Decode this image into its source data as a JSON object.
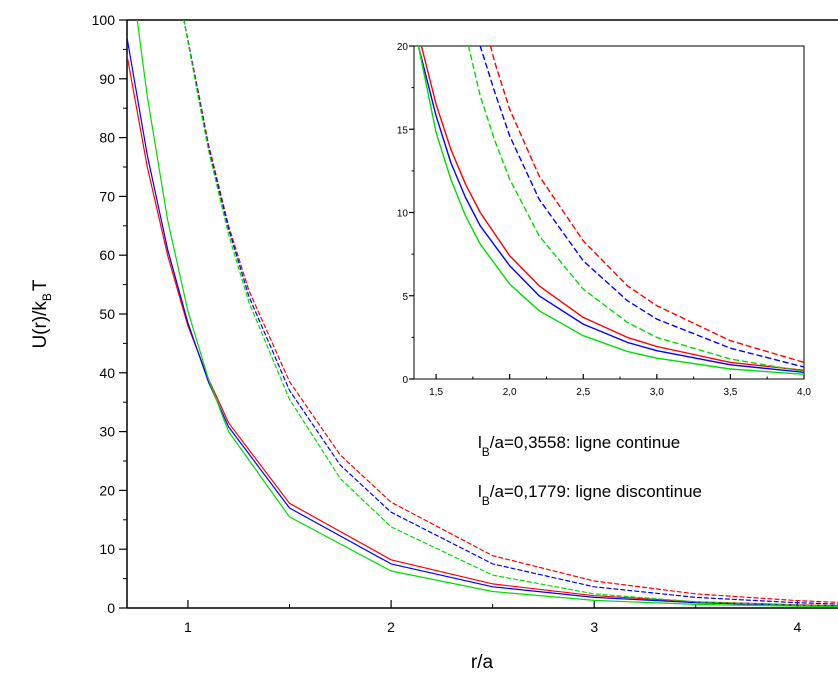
{
  "chart_data": [
    {
      "type": "line",
      "title": "",
      "xlabel": "r/a",
      "ylabel": "U(r)/kBT",
      "ylabel_main": "U(r)/k",
      "ylabel_sub": "B",
      "ylabel_end": "T",
      "xlim": [
        0.7,
        4.2
      ],
      "ylim": [
        0,
        100
      ],
      "xticks": [
        1,
        2,
        3,
        4
      ],
      "xtick_labels": [
        "1",
        "2",
        "3",
        "4"
      ],
      "yticks": [
        0,
        10,
        20,
        30,
        40,
        50,
        60,
        70,
        80,
        90,
        100
      ],
      "ytick_labels": [
        "0",
        "10",
        "20",
        "30",
        "40",
        "50",
        "60",
        "70",
        "80",
        "90",
        "100"
      ],
      "grid": false,
      "annotations": [
        {
          "pre": "l",
          "sub": "B",
          "post": "/a=0,3558: ligne continue"
        },
        {
          "pre": "l",
          "sub": "B",
          "post": "/a=0,1779: ligne discontinue"
        }
      ],
      "series": [
        {
          "color": "#ff0000",
          "style": "solid",
          "x": [
            0.7,
            0.8,
            0.9,
            1.0,
            1.1,
            1.2,
            1.5,
            2.0,
            2.5,
            3.0,
            3.5,
            4.0,
            4.2
          ],
          "y": [
            94.0,
            75.0,
            60.0,
            48.0,
            39.0,
            31.5,
            17.8,
            8.2,
            4.1,
            2.1,
            1.05,
            0.55,
            0.4
          ]
        },
        {
          "color": "#0000ff",
          "style": "solid",
          "x": [
            0.7,
            0.8,
            0.9,
            1.0,
            1.1,
            1.2,
            1.5,
            2.0,
            2.5,
            3.0,
            3.5,
            4.0,
            4.2
          ],
          "y": [
            97.0,
            77.0,
            61.0,
            48.5,
            38.5,
            30.8,
            17.0,
            7.5,
            3.6,
            1.8,
            0.9,
            0.45,
            0.33
          ]
        },
        {
          "color": "#00dd00",
          "style": "solid",
          "x": [
            0.75,
            0.8,
            0.9,
            1.0,
            1.1,
            1.2,
            1.5,
            2.0,
            2.5,
            3.0,
            3.5,
            4.0,
            4.2
          ],
          "y": [
            100.0,
            87.0,
            66.0,
            50.5,
            39.0,
            30.0,
            15.5,
            6.3,
            2.8,
            1.3,
            0.62,
            0.3,
            0.22
          ]
        },
        {
          "color": "#ff0000",
          "style": "dashed",
          "x": [
            0.98,
            1.05,
            1.1,
            1.2,
            1.3,
            1.5,
            1.75,
            2.0,
            2.5,
            3.0,
            3.5,
            4.0,
            4.2
          ],
          "y": [
            100.0,
            88.0,
            79.0,
            65.0,
            54.0,
            38.5,
            26.0,
            18.0,
            8.9,
            4.6,
            2.4,
            1.25,
            0.95
          ]
        },
        {
          "color": "#0000ff",
          "style": "dashed",
          "x": [
            0.98,
            1.05,
            1.1,
            1.2,
            1.3,
            1.5,
            1.75,
            2.0,
            2.5,
            3.0,
            3.5,
            4.0,
            4.2
          ],
          "y": [
            100.0,
            87.5,
            78.5,
            64.5,
            53.0,
            37.0,
            24.3,
            16.3,
            7.5,
            3.6,
            1.8,
            0.9,
            0.66
          ]
        },
        {
          "color": "#00dd00",
          "style": "dashed",
          "x": [
            0.98,
            1.05,
            1.1,
            1.2,
            1.3,
            1.5,
            1.75,
            2.0,
            2.5,
            3.0,
            3.5,
            4.0,
            4.2
          ],
          "y": [
            100.0,
            87.0,
            78.0,
            63.5,
            52.0,
            35.5,
            22.0,
            13.8,
            5.6,
            2.4,
            1.05,
            0.47,
            0.34
          ]
        }
      ]
    },
    {
      "type": "line",
      "title": "",
      "xlabel": "",
      "ylabel": "",
      "xlim": [
        1.35,
        4.0
      ],
      "ylim": [
        0,
        20
      ],
      "xticks": [
        1.5,
        2.0,
        2.5,
        3.0,
        3.5,
        4.0
      ],
      "xtick_labels": [
        "1,5",
        "2,0",
        "2,5",
        "3,0",
        "3,5",
        "4,0"
      ],
      "yticks": [
        0,
        5,
        10,
        15,
        20
      ],
      "ytick_labels": [
        "0",
        "5",
        "10",
        "15",
        "20"
      ],
      "grid": false,
      "series": [
        {
          "color": "#ff0000",
          "style": "solid",
          "x": [
            1.4,
            1.5,
            1.6,
            1.7,
            1.8,
            2.0,
            2.2,
            2.5,
            2.8,
            3.0,
            3.5,
            4.0
          ],
          "y": [
            20.0,
            16.5,
            13.8,
            11.7,
            10.0,
            7.4,
            5.6,
            3.7,
            2.5,
            1.95,
            1.0,
            0.52
          ]
        },
        {
          "color": "#0000ff",
          "style": "solid",
          "x": [
            1.38,
            1.5,
            1.6,
            1.7,
            1.8,
            2.0,
            2.2,
            2.5,
            2.8,
            3.0,
            3.5,
            4.0
          ],
          "y": [
            20.0,
            15.8,
            13.0,
            10.9,
            9.2,
            6.8,
            5.0,
            3.3,
            2.2,
            1.7,
            0.85,
            0.4
          ]
        },
        {
          "color": "#00dd00",
          "style": "solid",
          "x": [
            1.38,
            1.5,
            1.6,
            1.7,
            1.8,
            2.0,
            2.2,
            2.5,
            2.8,
            3.0,
            3.5,
            4.0
          ],
          "y": [
            20.0,
            14.8,
            12.0,
            9.8,
            8.1,
            5.7,
            4.1,
            2.6,
            1.65,
            1.25,
            0.6,
            0.28
          ]
        },
        {
          "color": "#ff0000",
          "style": "dashed",
          "x": [
            1.87,
            1.9,
            2.0,
            2.2,
            2.5,
            2.8,
            3.0,
            3.5,
            4.0
          ],
          "y": [
            20.0,
            19.0,
            16.2,
            12.2,
            8.3,
            5.6,
            4.4,
            2.3,
            1.0
          ]
        },
        {
          "color": "#0000ff",
          "style": "dashed",
          "x": [
            1.8,
            1.9,
            2.0,
            2.2,
            2.5,
            2.8,
            3.0,
            3.5,
            4.0
          ],
          "y": [
            20.0,
            17.2,
            14.6,
            10.8,
            7.1,
            4.7,
            3.6,
            1.85,
            0.72
          ]
        },
        {
          "color": "#00dd00",
          "style": "dashed",
          "x": [
            1.72,
            1.8,
            1.9,
            2.0,
            2.2,
            2.5,
            2.8,
            3.0,
            3.5,
            4.0
          ],
          "y": [
            20.0,
            17.0,
            14.3,
            12.0,
            8.6,
            5.4,
            3.4,
            2.5,
            1.2,
            0.45
          ]
        }
      ]
    }
  ]
}
